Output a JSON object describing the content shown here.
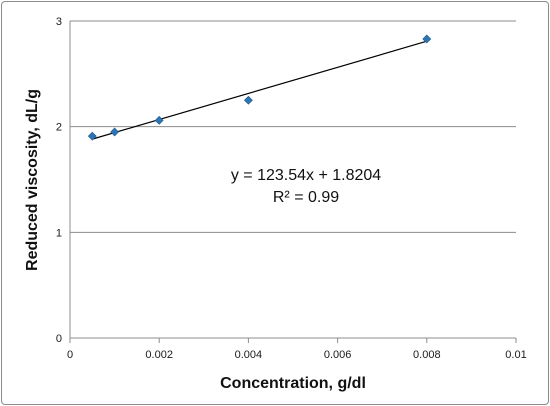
{
  "chart_data": {
    "type": "scatter",
    "title": "",
    "xlabel": "Concentration, g/dl",
    "ylabel": "Reduced viscosity, dL/g",
    "xlim": [
      0,
      0.01
    ],
    "ylim": [
      0,
      3
    ],
    "x_ticks": [
      "0",
      "0.002",
      "0.004",
      "0.006",
      "0.008",
      "0.01"
    ],
    "y_ticks": [
      "0",
      "1",
      "2",
      "3"
    ],
    "x_tick_values": [
      0,
      0.002,
      0.004,
      0.006,
      0.008,
      0.01
    ],
    "y_tick_values": [
      0,
      1,
      2,
      3
    ],
    "grid": "horizontal",
    "legend": "none",
    "series": [
      {
        "marker": "diamond",
        "color": "#2e75b6",
        "x": [
          0.0005,
          0.001,
          0.002,
          0.004,
          0.008
        ],
        "y": [
          1.91,
          1.95,
          2.06,
          2.25,
          2.83
        ]
      }
    ],
    "trendline": {
      "type": "linear",
      "slope": 123.54,
      "intercept": 1.8204,
      "x_range": [
        0.0005,
        0.008
      ],
      "color": "#000000"
    },
    "annotations": {
      "equation": "y = 123.54x + 1.8204",
      "r_squared": "R² = 0.99"
    },
    "colors": {
      "grid": "#8c8c8c",
      "axis": "#8c8c8c",
      "marker": "#2e75b6",
      "marker_edge": "#1f5a8a"
    }
  }
}
